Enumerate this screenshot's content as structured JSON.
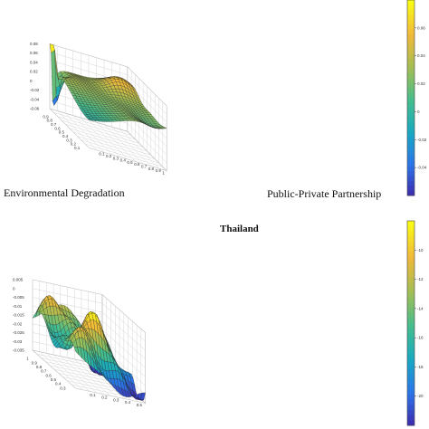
{
  "chart_data": [
    {
      "type": "surface",
      "title": "",
      "xlabel": "Environmental Degradation",
      "ylabel": "Public-Private Partnership",
      "zlabel": "",
      "xlim": [
        0,
        1
      ],
      "ylim": [
        0,
        1
      ],
      "zlim": [
        -0.06,
        0.08
      ],
      "z_ticks": [
        "0.08",
        "0.06",
        "0.04",
        "0.02",
        "0",
        "-0.02",
        "-0.04",
        "-0.06"
      ],
      "x_ticks": [
        "0.9",
        "0.8",
        "0.7",
        "0.6",
        "0.5",
        "0.4",
        "0.3",
        "0.2",
        "0.1"
      ],
      "y_ticks": [
        "0.1",
        "0.2",
        "0.3",
        "0.4",
        "0.5",
        "0.6",
        "0.7",
        "0.8",
        "0.9",
        "1"
      ],
      "colorbar_ticks": [
        "0.06",
        "0.04",
        "0.02",
        "0",
        "-0.02",
        "-0.04"
      ],
      "colormap": [
        "#3e26a8",
        "#2c73e8",
        "#17a9c2",
        "#45bd8c",
        "#a4be54",
        "#f1b93a",
        "#f9fb15"
      ],
      "grid": true,
      "surface_description_points": [
        {
          "x": 0.0,
          "y": 0.0,
          "z": 0.07
        },
        {
          "x": 0.1,
          "y": 0.05,
          "z": -0.06
        },
        {
          "x": 0.5,
          "y": 0.5,
          "z": 0.02
        },
        {
          "x": 0.6,
          "y": 0.9,
          "z": 0.05
        },
        {
          "x": 1.0,
          "y": 1.0,
          "z": 0.0
        }
      ]
    },
    {
      "type": "surface",
      "title": "Thailand",
      "xlabel": "",
      "ylabel": "",
      "zlabel": "",
      "xlim": [
        0,
        1
      ],
      "ylim": [
        0,
        1
      ],
      "zlim": [
        -0.035,
        0.005
      ],
      "z_ticks": [
        "0.005",
        "0",
        "-0.005",
        "-0.01",
        "-0.015",
        "-0.02",
        "-0.025",
        "-0.03",
        "-0.035"
      ],
      "x_ticks": [
        "1",
        "0.9",
        "0.8",
        "0.7",
        "0.6",
        "0.5",
        "0.4",
        "0.3"
      ],
      "y_ticks": [
        "0.1",
        "0.2",
        "0.3",
        "0.4",
        "0.5"
      ],
      "colorbar_ticks": [
        "-10",
        "-12",
        "-14",
        "-16",
        "-18",
        "-20"
      ],
      "colormap": [
        "#3e26a8",
        "#2c73e8",
        "#17a9c2",
        "#45bd8c",
        "#a4be54",
        "#f1b93a",
        "#f9fb15"
      ],
      "grid": true,
      "surface_description_points": [
        {
          "x": 1.0,
          "y": 0.0,
          "z": -0.025
        },
        {
          "x": 0.5,
          "y": 0.5,
          "z": 0.003
        },
        {
          "x": 0.3,
          "y": 0.4,
          "z": -0.005
        },
        {
          "x": 0.0,
          "y": 1.0,
          "z": -0.035
        }
      ]
    }
  ]
}
